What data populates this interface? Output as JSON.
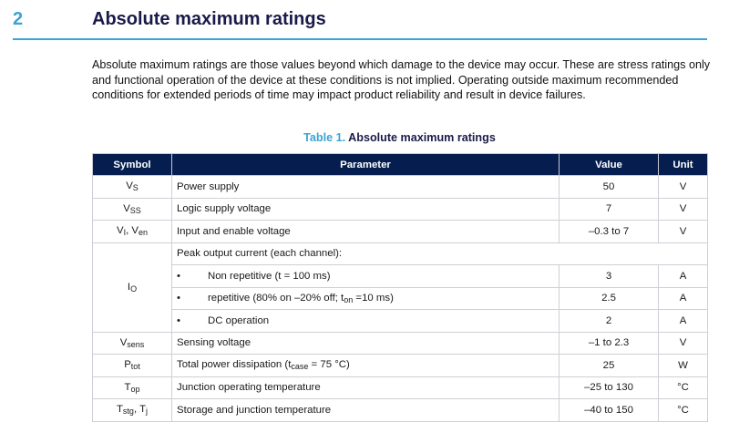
{
  "section": {
    "number": "2",
    "title": "Absolute maximum ratings",
    "intro": "Absolute maximum ratings are those values beyond which damage to the device may occur. These are stress ratings only and functional operation of the device at these conditions is not implied. Operating outside maximum recommended conditions for extended periods of time may impact product reliability and result in device failures."
  },
  "table": {
    "caption_label": "Table 1.",
    "caption_title": "Absolute maximum ratings",
    "headers": {
      "symbol": "Symbol",
      "parameter": "Parameter",
      "value": "Value",
      "unit": "Unit"
    },
    "rows": [
      {
        "sym_main": "V",
        "sym_sub": "S",
        "parameter": "Power supply",
        "value": "50",
        "unit": "V"
      },
      {
        "sym_main": "V",
        "sym_sub": "SS",
        "parameter": "Logic supply voltage",
        "value": "7",
        "unit": "V"
      },
      {
        "sym_main": "V",
        "sym_sub": "I",
        "sym_sep": ", ",
        "sym2_main": "V",
        "sym2_sub": "en",
        "parameter": "Input and enable voltage",
        "value": "–0.3 to 7",
        "unit": "V"
      },
      {
        "sym_main": "I",
        "sym_sub": "O",
        "parameter": "Peak output current (each channel):"
      },
      {
        "bullet": "•",
        "parameter": "Non repetitive (t = 100 ms)",
        "value": "3",
        "unit": "A"
      },
      {
        "bullet": "•",
        "parameter_a": "repetitive (80% on –20% off; t",
        "parameter_sub": "on",
        "parameter_b": " =10 ms)",
        "value": "2.5",
        "unit": "A"
      },
      {
        "bullet": "•",
        "parameter": "DC operation",
        "value": "2",
        "unit": "A"
      },
      {
        "sym_main": "V",
        "sym_sub": "sens",
        "parameter": "Sensing voltage",
        "value": "–1 to 2.3",
        "unit": "V"
      },
      {
        "sym_main": "P",
        "sym_sub": "tot",
        "parameter_a": "Total power dissipation (t",
        "parameter_sub": "case",
        "parameter_b": " = 75 °C)",
        "value": "25",
        "unit": "W"
      },
      {
        "sym_main": "T",
        "sym_sub": "op",
        "parameter": "Junction operating temperature",
        "value": "–25 to 130",
        "unit": "°C"
      },
      {
        "sym_main": "T",
        "sym_sub": "stg",
        "sym_sep": ", ",
        "sym2_main": "T",
        "sym2_sub": "j",
        "parameter": "Storage and junction temperature",
        "value": "–40 to 150",
        "unit": "°C"
      }
    ]
  }
}
